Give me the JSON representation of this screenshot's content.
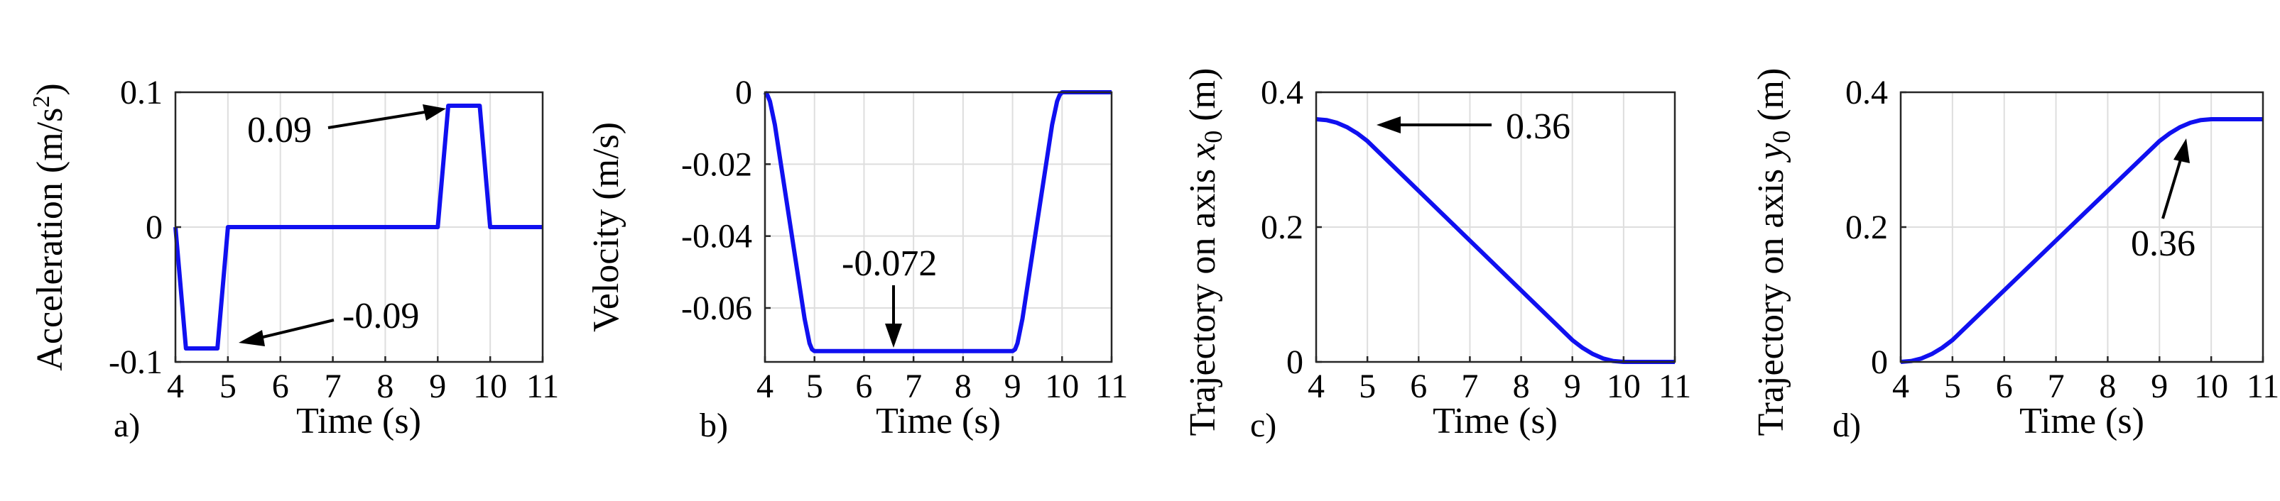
{
  "colors": {
    "series": "#1010f0",
    "grid": "#dedede",
    "axes": "#262626",
    "text": "#000000"
  },
  "chart_data": [
    {
      "type": "line",
      "panel_label": "a)",
      "xlabel": "Time (s)",
      "ylabel": "Acceleration (m/s²)",
      "ylabel_main": "Acceleration (m/s",
      "ylabel_sup": "2",
      "ylabel_tail": ")",
      "xlim": [
        4,
        11
      ],
      "ylim": [
        -0.1,
        0.1
      ],
      "xticks": [
        4,
        5,
        6,
        7,
        8,
        9,
        10,
        11
      ],
      "xtick_labels": [
        "4",
        "5",
        "6",
        "7",
        "8",
        "9",
        "10",
        "11"
      ],
      "yticks": [
        -0.1,
        0,
        0.1
      ],
      "ytick_labels": [
        "-0.1",
        "0",
        "0.1"
      ],
      "grid": true,
      "series": [
        {
          "x": [
            4,
            4.2,
            4.8,
            5,
            9,
            9.2,
            9.8,
            10,
            11
          ],
          "y": [
            0,
            -0.09,
            -0.09,
            0,
            0,
            0.09,
            0.09,
            0,
            0
          ]
        }
      ],
      "annotations": [
        {
          "text": "0.09",
          "x": 9.3,
          "y": 0.09
        },
        {
          "text": "-0.09",
          "x": 5.3,
          "y": -0.09
        }
      ]
    },
    {
      "type": "line",
      "panel_label": "b)",
      "xlabel": "Time (s)",
      "ylabel": "Velocity (m/s)",
      "xlim": [
        4,
        11
      ],
      "ylim": [
        -0.075,
        0
      ],
      "xticks": [
        4,
        5,
        6,
        7,
        8,
        9,
        10,
        11
      ],
      "xtick_labels": [
        "4",
        "5",
        "6",
        "7",
        "8",
        "9",
        "10",
        "11"
      ],
      "yticks": [
        -0.06,
        -0.04,
        -0.02,
        0
      ],
      "ytick_labels": [
        "-0.06",
        "-0.04",
        "-0.02",
        "0"
      ],
      "grid": true,
      "series": [
        {
          "x": [
            4,
            4.05,
            4.1,
            4.2,
            4.8,
            4.9,
            4.95,
            5,
            9,
            9.05,
            9.1,
            9.2,
            9.8,
            9.9,
            9.95,
            10,
            11
          ],
          "y": [
            0,
            -0.0008,
            -0.0025,
            -0.009,
            -0.063,
            -0.0698,
            -0.0715,
            -0.072,
            -0.072,
            -0.0715,
            -0.0698,
            -0.063,
            -0.009,
            -0.0025,
            -0.0008,
            0,
            0
          ]
        }
      ],
      "annotations": [
        {
          "text": "-0.072",
          "x": 6.6,
          "y": -0.072
        }
      ]
    },
    {
      "type": "line",
      "panel_label": "c)",
      "xlabel": "Time (s)",
      "ylabel": "Trajectory on axis x₀ (m)",
      "ylabel_main": "Trajectory on axis ",
      "ylabel_var": "x",
      "ylabel_sub": "0",
      "ylabel_tail": " (m)",
      "xlim": [
        4,
        11
      ],
      "ylim": [
        0,
        0.4
      ],
      "xticks": [
        4,
        5,
        6,
        7,
        8,
        9,
        10,
        11
      ],
      "xtick_labels": [
        "4",
        "5",
        "6",
        "7",
        "8",
        "9",
        "10",
        "11"
      ],
      "yticks": [
        0,
        0.2,
        0.4
      ],
      "ytick_labels": [
        "0",
        "0.2",
        "0.4"
      ],
      "grid": true,
      "series": [
        {
          "x": [
            4,
            4.2,
            4.4,
            4.6,
            4.8,
            5,
            9,
            9.2,
            9.4,
            9.6,
            9.8,
            10,
            11
          ],
          "y": [
            0.36,
            0.3587,
            0.3548,
            0.3483,
            0.3392,
            0.3276,
            0.0324,
            0.0208,
            0.0117,
            0.0052,
            0.0013,
            0,
            0
          ]
        }
      ],
      "annotations": [
        {
          "text": "0.36",
          "x": 4.5,
          "y": 0.36
        }
      ]
    },
    {
      "type": "line",
      "panel_label": "d)",
      "xlabel": "Time (s)",
      "ylabel": "Trajectory on axis y₀ (m)",
      "ylabel_main": "Trajectory on axis ",
      "ylabel_var": "y",
      "ylabel_sub": "0",
      "ylabel_tail": " (m)",
      "xlim": [
        4,
        11
      ],
      "ylim": [
        0,
        0.4
      ],
      "xticks": [
        4,
        5,
        6,
        7,
        8,
        9,
        10,
        11
      ],
      "xtick_labels": [
        "4",
        "5",
        "6",
        "7",
        "8",
        "9",
        "10",
        "11"
      ],
      "yticks": [
        0,
        0.2,
        0.4
      ],
      "ytick_labels": [
        "0",
        "0.2",
        "0.4"
      ],
      "grid": true,
      "series": [
        {
          "x": [
            4,
            4.2,
            4.4,
            4.6,
            4.8,
            5,
            9,
            9.2,
            9.4,
            9.6,
            9.8,
            10,
            11
          ],
          "y": [
            0,
            0.0013,
            0.0052,
            0.0117,
            0.0208,
            0.0324,
            0.3276,
            0.3392,
            0.3483,
            0.3548,
            0.3587,
            0.36,
            0.36
          ]
        }
      ],
      "annotations": [
        {
          "text": "0.36",
          "x": 10.4,
          "y": 0.36
        }
      ]
    }
  ]
}
